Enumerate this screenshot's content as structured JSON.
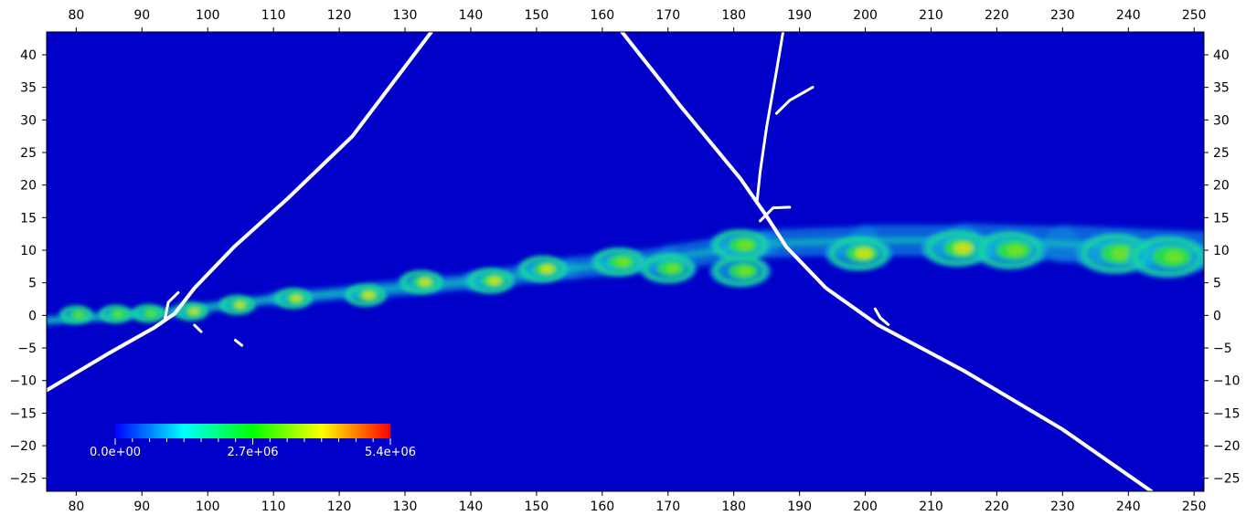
{
  "chart_data": {
    "type": "heatmap",
    "title": "",
    "xlabel": "",
    "ylabel": "",
    "xlim": [
      75.5,
      251.5
    ],
    "ylim": [
      -27,
      43.5
    ],
    "x_ticks": [
      80,
      90,
      100,
      110,
      120,
      130,
      140,
      150,
      160,
      170,
      180,
      190,
      200,
      210,
      220,
      230,
      240,
      250
    ],
    "y_ticks": [
      40,
      35,
      30,
      25,
      20,
      15,
      10,
      5,
      0,
      -5,
      -10,
      -15,
      -20,
      -25
    ],
    "x_tick_labels": [
      "80",
      "90",
      "100",
      "110",
      "120",
      "130",
      "140",
      "150",
      "160",
      "170",
      "180",
      "190",
      "200",
      "210",
      "220",
      "230",
      "240",
      "250"
    ],
    "y_tick_labels": [
      "40",
      "35",
      "30",
      "25",
      "20",
      "15",
      "10",
      "5",
      "0",
      "−5",
      "−10",
      "−15",
      "−20",
      "−25"
    ],
    "ticks_on_all_sides": true,
    "grid": false,
    "background_color": "#0000c8",
    "colormap": [
      "#0000ff",
      "#00ffff",
      "#00ff00",
      "#ffff00",
      "#ff0000"
    ],
    "colorbar": {
      "labels": [
        "0.0e+00",
        "2.7e+06",
        "5.4e+06"
      ],
      "values": [
        0,
        2700000,
        5400000
      ],
      "position": "bottom-left",
      "minor_ticks": 16
    },
    "shear_layer_centerline": [
      {
        "x": 75.5,
        "y": -0.8
      },
      {
        "x": 95,
        "y": 0.6
      },
      {
        "x": 110,
        "y": 2.5
      },
      {
        "x": 125,
        "y": 3.8
      },
      {
        "x": 140,
        "y": 5.2
      },
      {
        "x": 155,
        "y": 7.2
      },
      {
        "x": 170,
        "y": 8.8
      },
      {
        "x": 185,
        "y": 11
      },
      {
        "x": 200,
        "y": 11.5
      },
      {
        "x": 215,
        "y": 11.5
      },
      {
        "x": 230,
        "y": 11
      },
      {
        "x": 251.5,
        "y": 10
      }
    ],
    "vortices": [
      {
        "x": 80,
        "y": 0.1,
        "intensity": 0.35
      },
      {
        "x": 86,
        "y": 0.2,
        "intensity": 0.35
      },
      {
        "x": 91,
        "y": 0.3,
        "intensity": 0.35
      },
      {
        "x": 97.5,
        "y": 0.6,
        "intensity": 0.7
      },
      {
        "x": 104.5,
        "y": 1.6,
        "intensity": 0.65
      },
      {
        "x": 113,
        "y": 2.6,
        "intensity": 0.6
      },
      {
        "x": 124,
        "y": 3.1,
        "intensity": 0.65
      },
      {
        "x": 132.5,
        "y": 5.1,
        "intensity": 0.6
      },
      {
        "x": 143,
        "y": 5.3,
        "intensity": 0.6
      },
      {
        "x": 151,
        "y": 7.1,
        "intensity": 0.6
      },
      {
        "x": 162.5,
        "y": 8.2,
        "intensity": 0.55
      },
      {
        "x": 170,
        "y": 7.2,
        "intensity": 0.4
      },
      {
        "x": 181,
        "y": 10.8,
        "intensity": 0.55
      },
      {
        "x": 181,
        "y": 6.8,
        "intensity": 0.5
      },
      {
        "x": 199,
        "y": 9.5,
        "intensity": 0.6
      },
      {
        "x": 214,
        "y": 10.3,
        "intensity": 0.6
      },
      {
        "x": 222,
        "y": 10,
        "intensity": 0.5
      },
      {
        "x": 238,
        "y": 9.5,
        "intensity": 0.55
      },
      {
        "x": 246,
        "y": 9,
        "intensity": 0.45
      }
    ],
    "white_contours": [
      [
        {
          "x": 75.5,
          "y": -11.5
        },
        {
          "x": 85,
          "y": -5.8
        },
        {
          "x": 92,
          "y": -1.8
        },
        {
          "x": 95,
          "y": 0.3
        },
        {
          "x": 98,
          "y": 4.2
        },
        {
          "x": 104,
          "y": 10.5
        },
        {
          "x": 112,
          "y": 17.8
        },
        {
          "x": 122,
          "y": 27.5
        },
        {
          "x": 134,
          "y": 43.5
        }
      ],
      [
        {
          "x": 163,
          "y": 43.5
        },
        {
          "x": 172,
          "y": 32
        },
        {
          "x": 181,
          "y": 21
        },
        {
          "x": 185,
          "y": 15.2
        },
        {
          "x": 188,
          "y": 10.5
        },
        {
          "x": 194,
          "y": 4.2
        },
        {
          "x": 202,
          "y": -1.5
        },
        {
          "x": 215,
          "y": -8.5
        },
        {
          "x": 230,
          "y": -17.5
        },
        {
          "x": 243.5,
          "y": -27
        }
      ],
      [
        {
          "x": 183.5,
          "y": 17.2
        },
        {
          "x": 184,
          "y": 22
        },
        {
          "x": 185,
          "y": 29
        },
        {
          "x": 186.5,
          "y": 37.5
        },
        {
          "x": 187.5,
          "y": 43.5
        }
      ],
      [
        {
          "x": 186.5,
          "y": 31
        },
        {
          "x": 188.5,
          "y": 33
        },
        {
          "x": 192,
          "y": 35
        }
      ],
      [
        {
          "x": 93.5,
          "y": -0.5
        },
        {
          "x": 94,
          "y": 2
        },
        {
          "x": 95.5,
          "y": 3.5
        }
      ],
      [
        {
          "x": 98,
          "y": -1.5
        },
        {
          "x": 99,
          "y": -2.5
        }
      ],
      [
        {
          "x": 104.2,
          "y": -3.8
        },
        {
          "x": 105.2,
          "y": -4.6
        }
      ],
      [
        {
          "x": 201.5,
          "y": 1
        },
        {
          "x": 202.3,
          "y": -0.4
        },
        {
          "x": 203.5,
          "y": -1.4
        }
      ],
      [
        {
          "x": 184,
          "y": 14.5
        },
        {
          "x": 186,
          "y": 16.5
        },
        {
          "x": 188.5,
          "y": 16.6
        }
      ]
    ]
  }
}
